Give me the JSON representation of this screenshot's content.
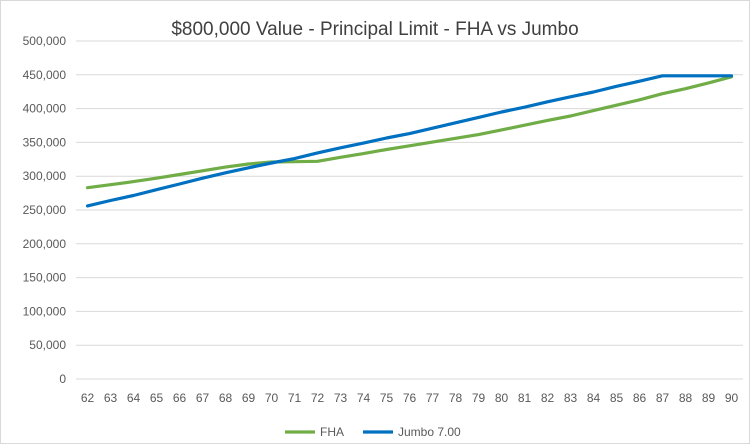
{
  "chart_data": {
    "type": "line",
    "title": "$800,000 Value - Principal Limit - FHA vs Jumbo",
    "xlabel": "",
    "ylabel": "",
    "x": [
      62,
      63,
      64,
      65,
      66,
      67,
      68,
      69,
      70,
      71,
      72,
      73,
      74,
      75,
      76,
      77,
      78,
      79,
      80,
      81,
      82,
      83,
      84,
      85,
      86,
      87,
      88,
      89,
      90
    ],
    "ylim": [
      0,
      500000
    ],
    "yticks": [
      0,
      50000,
      100000,
      150000,
      200000,
      250000,
      300000,
      350000,
      400000,
      450000,
      500000
    ],
    "ytick_labels": [
      "0",
      "50,000",
      "100,000",
      "150,000",
      "200,000",
      "250,000",
      "300,000",
      "350,000",
      "400,000",
      "450,000",
      "500,000"
    ],
    "grid": true,
    "legend_position": "bottom",
    "series": [
      {
        "name": "FHA",
        "color": "#70ad47",
        "values": [
          283000,
          287500,
          292000,
          297000,
          302500,
          308000,
          313500,
          318000,
          321000,
          321500,
          322000,
          328000,
          333500,
          339500,
          345000,
          350500,
          356000,
          361500,
          368500,
          375500,
          382500,
          389000,
          397000,
          405000,
          413000,
          422000,
          429500,
          438000,
          447000
        ]
      },
      {
        "name": "Jumbo 7.00",
        "color": "#0070c0",
        "values": [
          256000,
          264000,
          271500,
          280000,
          288500,
          297000,
          305000,
          312500,
          319500,
          326000,
          334500,
          342000,
          349000,
          356500,
          363000,
          371000,
          379000,
          387000,
          395000,
          402000,
          410000,
          417500,
          424500,
          433000,
          440500,
          448500,
          448500,
          448500,
          448500
        ]
      }
    ]
  }
}
